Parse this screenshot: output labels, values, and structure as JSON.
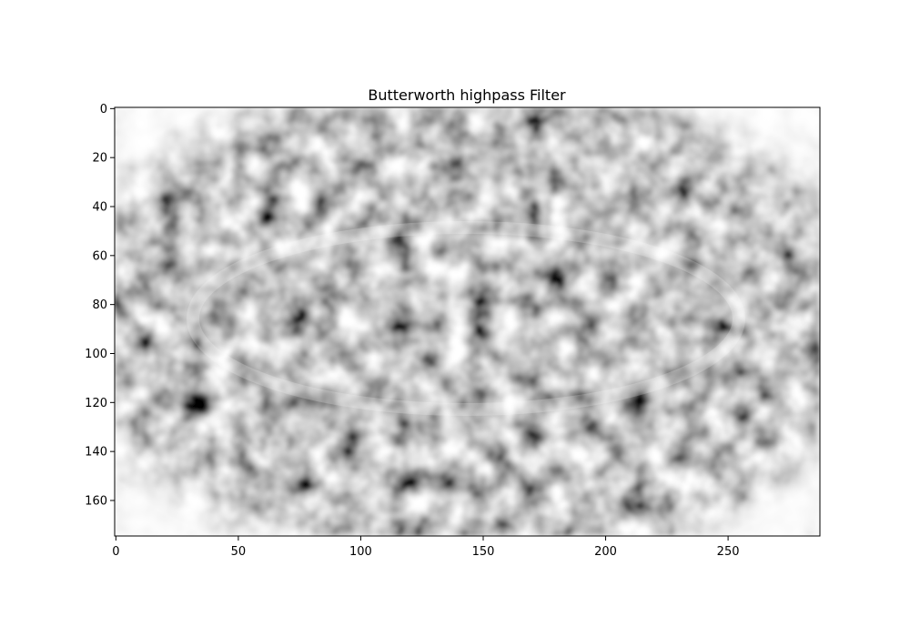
{
  "chart_data": {
    "type": "heatmap",
    "title": "Butterworth highpass Filter",
    "xlabel": "",
    "ylabel": "",
    "colormap": "gray",
    "image_shape": [
      175,
      288
    ],
    "xlim": [
      -0.5,
      287.5
    ],
    "ylim": [
      174.5,
      -0.5
    ],
    "xticks": [
      0,
      50,
      100,
      150,
      200,
      250
    ],
    "yticks": [
      0,
      20,
      40,
      60,
      80,
      100,
      120,
      140,
      160
    ],
    "grid": false,
    "legend": "none",
    "colors": {
      "frame": "#000000",
      "background": "#ffffff",
      "dark_texture": "#8a8a8a",
      "light_texture": "#f2f2f2"
    }
  }
}
